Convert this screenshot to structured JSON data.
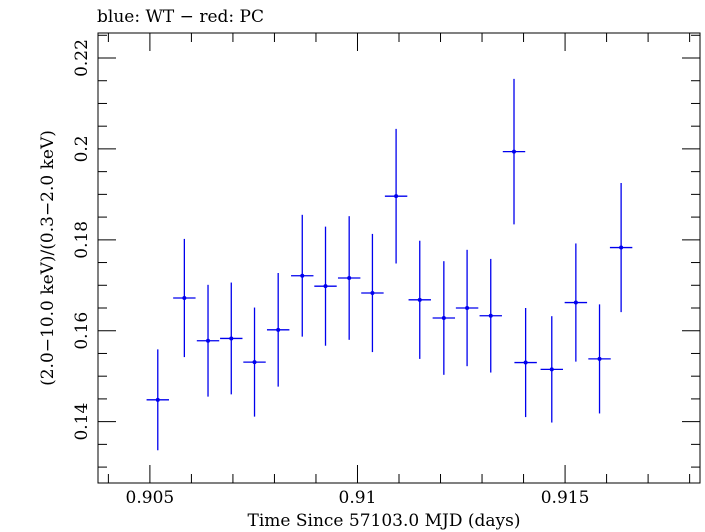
{
  "header": {
    "text": "blue: WT − red: PC"
  },
  "chart_data": {
    "type": "scatter",
    "title": "",
    "xlabel": "Time Since 57103.0 MJD (days)",
    "ylabel": "(2.0−10.0 keV)/(0.3−2.0 keV)",
    "xlim": [
      0.90375,
      0.91825
    ],
    "ylim": [
      0.1265,
      0.2255
    ],
    "xticks": [
      0.905,
      0.91,
      0.915
    ],
    "xtick_labels": [
      "0.905",
      "0.91",
      "0.915"
    ],
    "yticks": [
      0.14,
      0.16,
      0.18,
      0.2,
      0.22
    ],
    "ytick_labels": [
      "0.14",
      "0.16",
      "0.18",
      "0.2",
      "0.22"
    ],
    "grid": false,
    "legend": "none",
    "series_color": "#0000ee",
    "series": [
      {
        "x": [
          0.90519,
          0.90583,
          0.9064,
          0.90696,
          0.90752,
          0.90809,
          0.90867,
          0.90923,
          0.9098,
          0.91036,
          0.91093,
          0.9115,
          0.91208,
          0.91264,
          0.91321,
          0.91377,
          0.91405,
          0.91468,
          0.91526,
          0.91583,
          0.91635
        ],
        "xerr": [
          0.00027,
          0.00027,
          0.00027,
          0.00027,
          0.00027,
          0.00027,
          0.00027,
          0.00027,
          0.00027,
          0.00027,
          0.00027,
          0.00027,
          0.00027,
          0.00027,
          0.00027,
          0.00027,
          0.00027,
          0.00027,
          0.00027,
          0.00027,
          0.00027
        ],
        "y": [
          0.1448,
          0.1672,
          0.1578,
          0.1583,
          0.1531,
          0.1602,
          0.1721,
          0.1698,
          0.1716,
          0.1683,
          0.1896,
          0.1668,
          0.1628,
          0.165,
          0.1633,
          0.1994,
          0.153,
          0.1515,
          0.1662,
          0.1538,
          0.1783
        ],
        "yerr": [
          0.0111,
          0.013,
          0.0123,
          0.0123,
          0.012,
          0.0125,
          0.0134,
          0.0131,
          0.0136,
          0.013,
          0.0148,
          0.013,
          0.0125,
          0.0128,
          0.0125,
          0.016,
          0.012,
          0.0117,
          0.013,
          0.012,
          0.0142
        ]
      }
    ]
  }
}
